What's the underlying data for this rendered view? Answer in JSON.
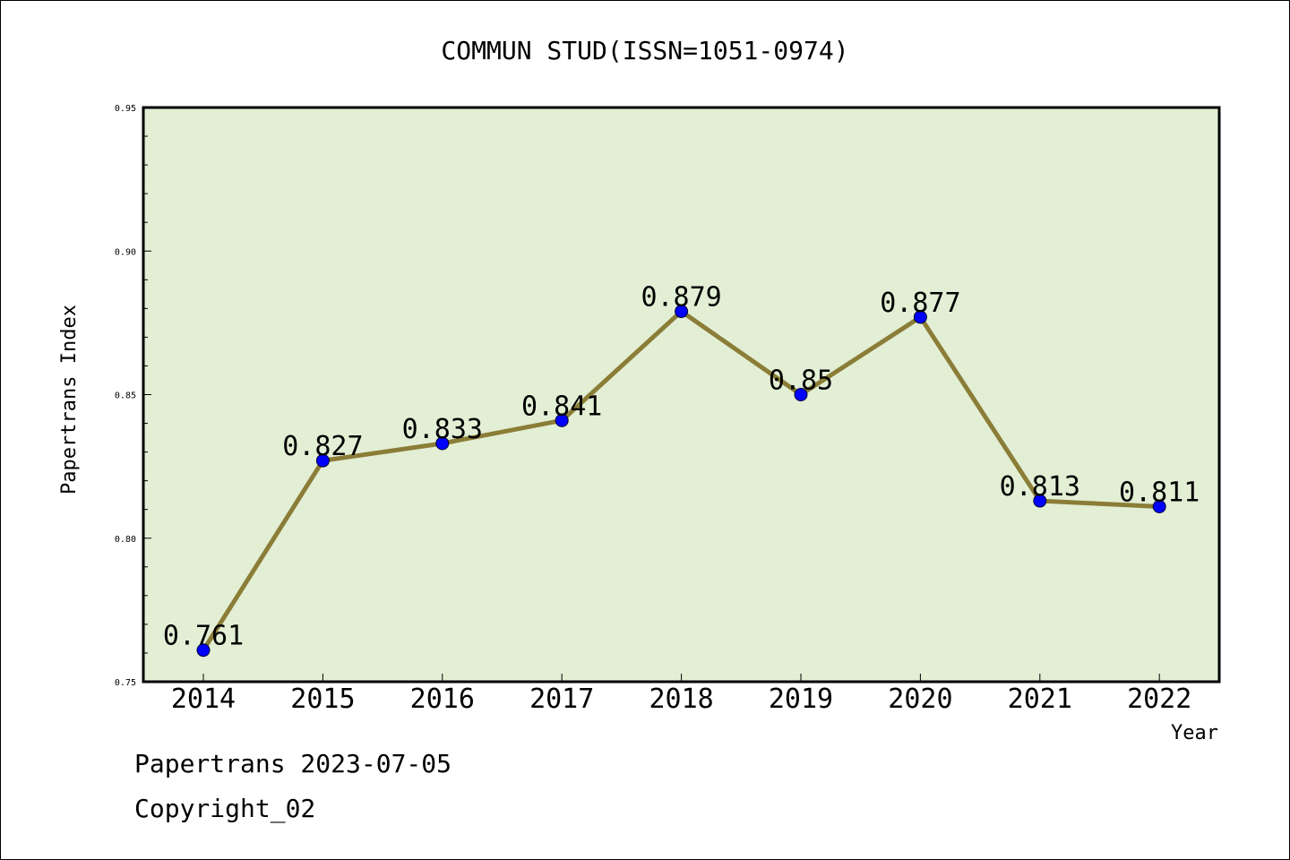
{
  "chart_data": {
    "type": "line",
    "title": "COMMUN STUD(ISSN=1051-0974)",
    "xlabel": "Year",
    "ylabel": "Papertrans Index",
    "categories": [
      "2014",
      "2015",
      "2016",
      "2017",
      "2018",
      "2019",
      "2020",
      "2021",
      "2022"
    ],
    "values": [
      0.761,
      0.827,
      0.833,
      0.841,
      0.879,
      0.85,
      0.877,
      0.813,
      0.811
    ],
    "data_labels": [
      "0.761",
      "0.827",
      "0.833",
      "0.841",
      "0.879",
      "0.85",
      "0.877",
      "0.813",
      "0.811"
    ],
    "ylim": [
      0.75,
      0.95
    ],
    "yticks": [
      0.75,
      0.8,
      0.85,
      0.9,
      0.95
    ],
    "ytick_labels": [
      "0.75",
      "0.80",
      "0.85",
      "0.90",
      "0.95"
    ],
    "grid": false,
    "legend": "none",
    "colors": {
      "plot_background": "#e2efd5",
      "line": "#8b7d37",
      "marker": "#0000ff"
    }
  },
  "footer": {
    "line1": "Papertrans 2023-07-05",
    "line2": "Copyright_02"
  }
}
